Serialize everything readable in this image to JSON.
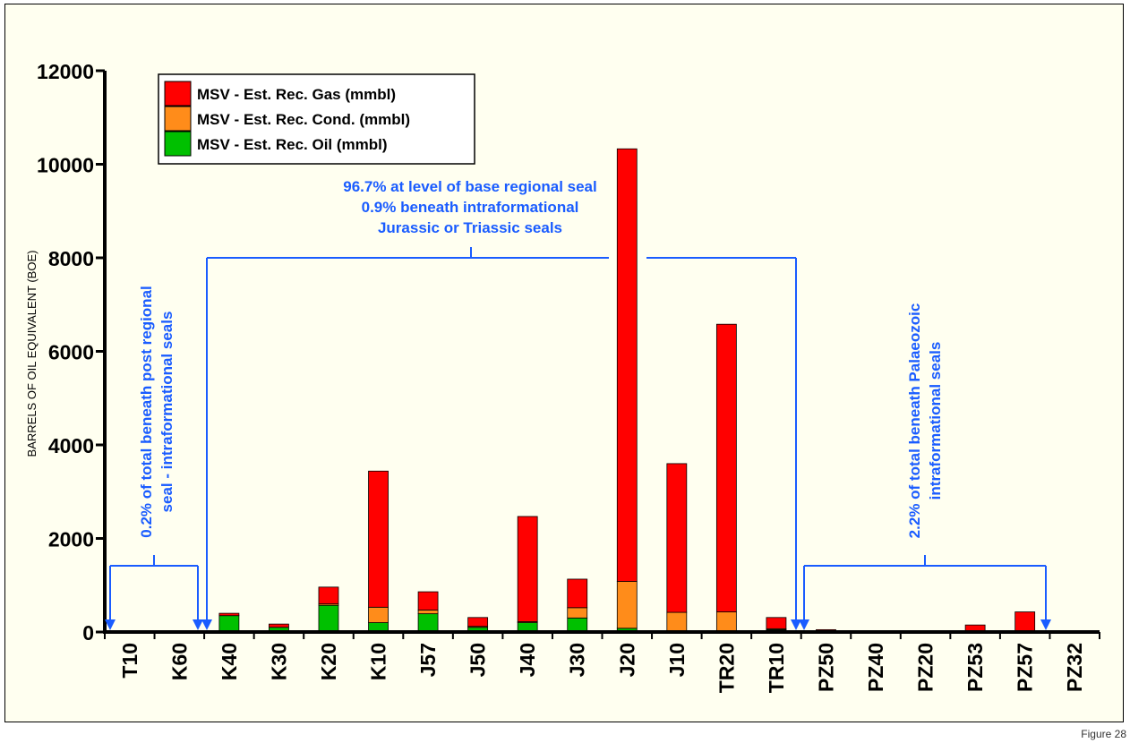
{
  "figure_label": "Figure 28",
  "colors": {
    "gas": "#ff0000",
    "cond": "#ff8c1a",
    "oil": "#00c000",
    "annotation": "#1a5cff",
    "axis": "#000000",
    "background": "#fffff0"
  },
  "chart_data": {
    "type": "bar",
    "stacked": true,
    "title": "",
    "xlabel": "",
    "ylabel": "BARRELS OF OIL EQUIVALENT (BOE)",
    "ylim": [
      0,
      12000
    ],
    "yticks": [
      "0",
      "2000",
      "4000",
      "6000",
      "8000",
      "10000",
      "12000"
    ],
    "grid": false,
    "legend_position": "top-left",
    "categories": [
      "T10",
      "K60",
      "K40",
      "K30",
      "K20",
      "K10",
      "J57",
      "J50",
      "J40",
      "J30",
      "J20",
      "J10",
      "TR20",
      "TR10",
      "PZ50",
      "PZ40",
      "PZ20",
      "PZ53",
      "PZ57",
      "PZ32"
    ],
    "series": [
      {
        "name": "MSV - Est. Rec. Oil (mmbl)",
        "color_key": "oil",
        "values": [
          0,
          0,
          350,
          100,
          570,
          200,
          390,
          100,
          200,
          300,
          80,
          0,
          0,
          50,
          0,
          0,
          0,
          0,
          0,
          0
        ]
      },
      {
        "name": "MSV - Est. Rec. Cond. (mmbl)",
        "color_key": "cond",
        "values": [
          0,
          0,
          0,
          0,
          30,
          330,
          80,
          20,
          20,
          220,
          1000,
          420,
          430,
          20,
          0,
          0,
          0,
          0,
          0,
          0
        ]
      },
      {
        "name": "MSV - Est. Rec. Gas (mmbl)",
        "color_key": "gas",
        "values": [
          0,
          0,
          50,
          70,
          360,
          2910,
          390,
          190,
          2250,
          610,
          9250,
          3180,
          6150,
          240,
          50,
          0,
          0,
          150,
          430,
          0
        ]
      }
    ],
    "legend": [
      "MSV - Est. Rec. Gas (mmbl)",
      "MSV - Est. Rec. Cond. (mmbl)",
      "MSV - Est. Rec. Oil (mmbl)"
    ],
    "annotations": {
      "left": [
        "0.2% of total beneath post regional",
        "seal - intraformational seals"
      ],
      "middle": [
        "96.7% at level of base regional seal",
        "0.9% beneath intraformational",
        "Jurassic or Triassic seals"
      ],
      "right": [
        "2.2% of total beneath Palaeozoic",
        "intraformational seals"
      ]
    }
  }
}
